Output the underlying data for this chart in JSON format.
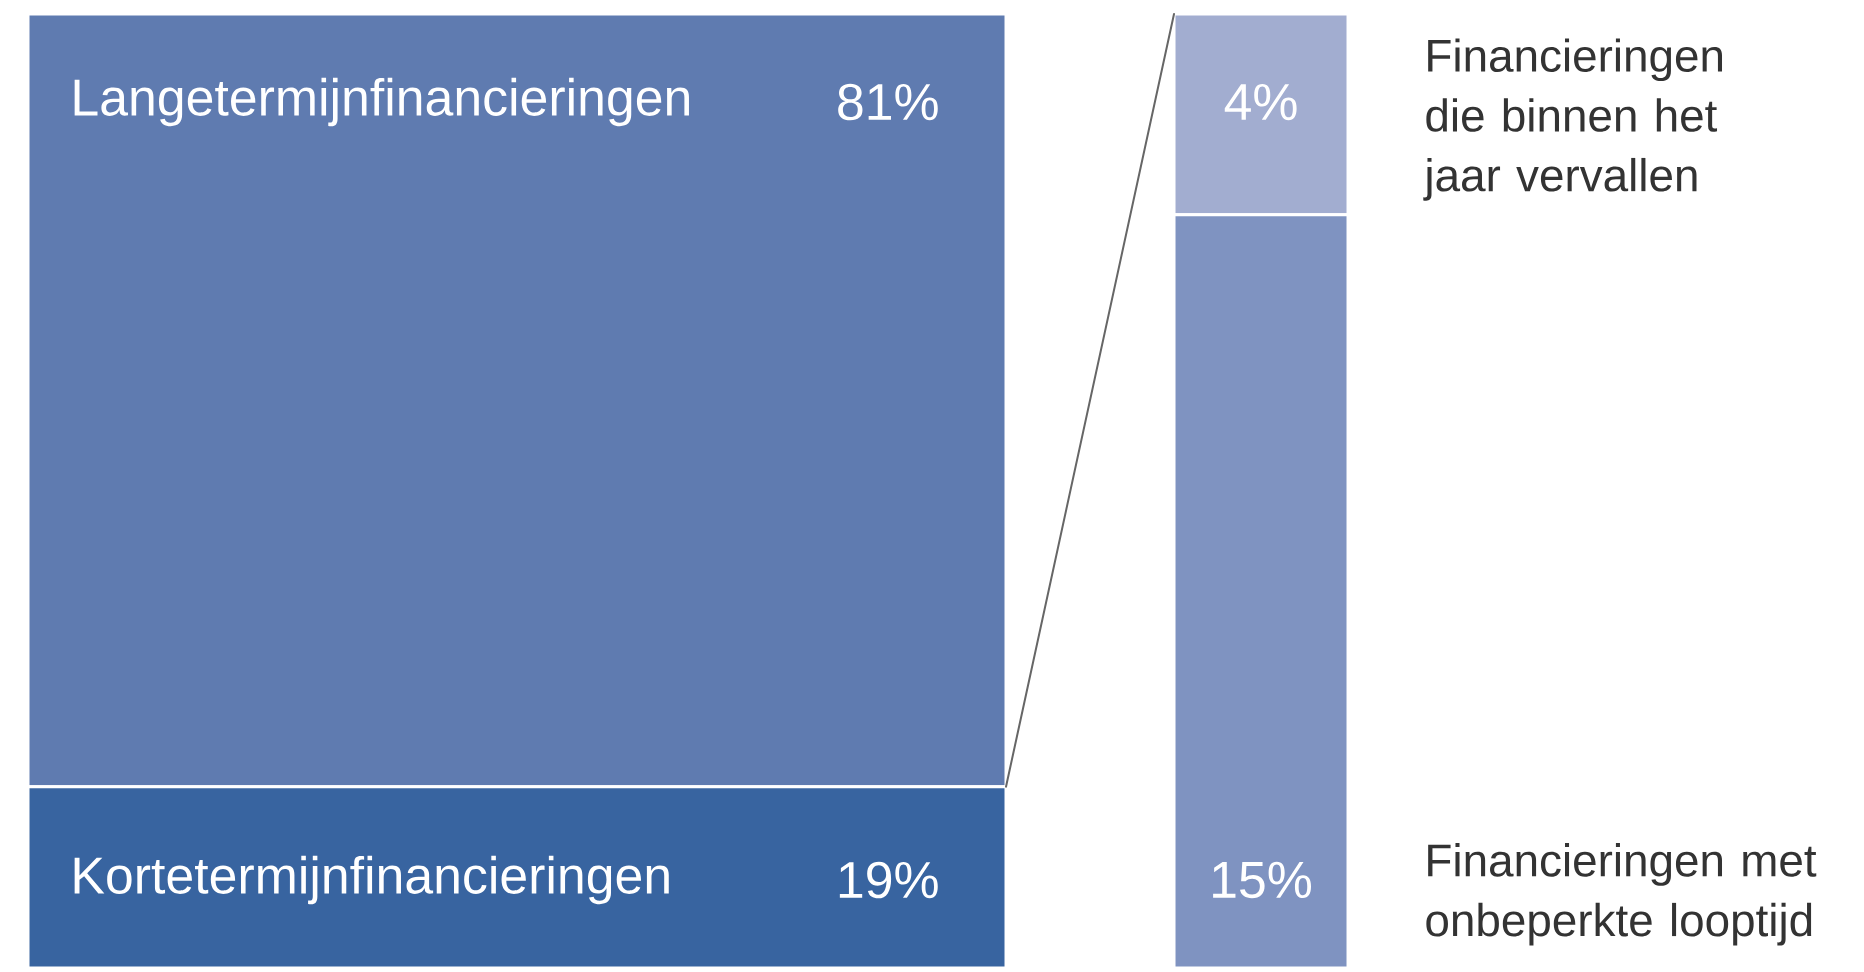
{
  "chart_data": [
    {
      "type": "bar",
      "stacked": true,
      "categories": [
        null
      ],
      "tick_labels": false,
      "series": [
        {
          "name": "Kortetermijnfinancieringen",
          "color": "#3864a0",
          "values": [
            19
          ],
          "value_labels": [
            "19%"
          ]
        },
        {
          "name": "Langetermijnfinancieringen",
          "color": "#5f7bb0",
          "values": [
            81
          ],
          "value_labels": [
            "81%"
          ]
        }
      ]
    },
    {
      "type": "bar",
      "stacked": true,
      "categories": [
        null
      ],
      "tick_labels": false,
      "series": [
        {
          "name": "Financieringen met onbeperkte looptijd",
          "color": "#7f93c1",
          "values": [
            15
          ],
          "value_labels": [
            "15%"
          ]
        },
        {
          "name": "Financieringen die binnen het jaar vervallen",
          "color": "#a2add0",
          "values": [
            4
          ],
          "value_labels": [
            "4%"
          ]
        }
      ]
    }
  ]
}
